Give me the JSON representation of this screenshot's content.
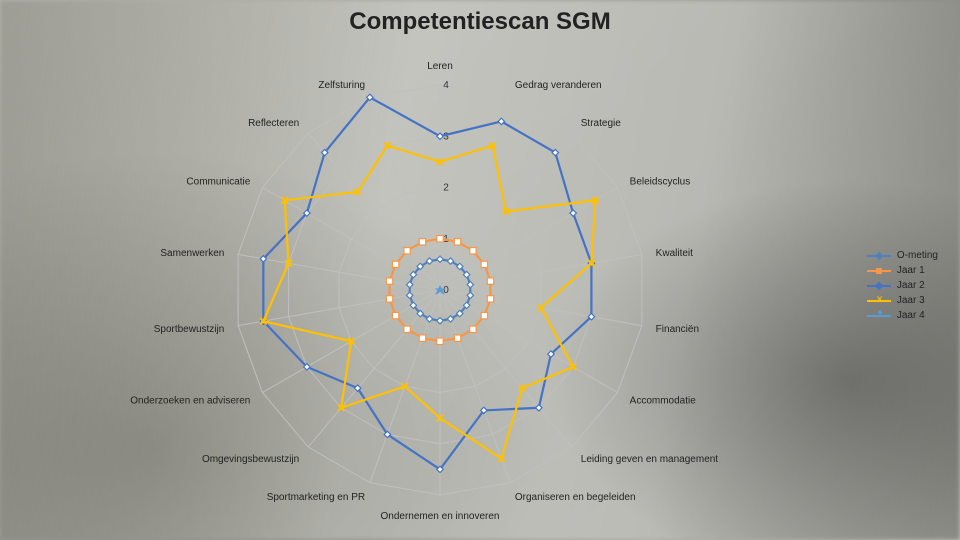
{
  "title": "Competentiescan SGM",
  "subtitle": "Leren",
  "chart": {
    "type": "radar",
    "axes": [
      "Leren",
      "Gedrag veranderen",
      "Strategie",
      "Beleidscyclus",
      "Kwaliteit",
      "Financiën",
      "Accommodatie",
      "Leiding geven en management",
      "Organiseren en begeleiden",
      "Ondernemen en innoveren",
      "Sportmarketing en PR",
      "Omgevingsbewustzijn",
      "Onderzoeken en adviseren",
      "Sportbewustzijn",
      "Samenwerken",
      "Communicatie",
      "Reflecteren",
      "Zelfsturing"
    ],
    "scale_max": 4,
    "ticks": [
      0,
      1,
      2,
      3,
      4
    ],
    "grid_color": "#bfbfbf",
    "background": "#f5f5f3",
    "series": [
      {
        "name": "O-meting",
        "color": "#4f81bd",
        "marker": "diamond",
        "values": [
          0.6,
          0.6,
          0.6,
          0.6,
          0.6,
          0.6,
          0.6,
          0.6,
          0.6,
          0.6,
          0.6,
          0.6,
          0.6,
          0.6,
          0.6,
          0.6,
          0.6,
          0.6
        ]
      },
      {
        "name": "Jaar 1",
        "color": "#f79646",
        "marker": "square",
        "values": [
          1,
          1,
          1,
          1,
          1,
          1,
          1,
          1,
          1,
          1,
          1,
          1,
          1,
          1,
          1,
          1,
          1,
          1
        ]
      },
      {
        "name": "Jaar 2",
        "color": "#4472c4",
        "marker": "diamond",
        "values": [
          3.0,
          3.5,
          3.5,
          3.0,
          3.0,
          3.0,
          2.5,
          3.0,
          2.5,
          3.5,
          3.0,
          2.5,
          3.0,
          3.5,
          3.5,
          3.0,
          3.5,
          4.0
        ]
      },
      {
        "name": "Jaar 3",
        "color": "#ffc000",
        "marker": "x",
        "values": [
          2.5,
          3.0,
          2.0,
          3.5,
          3.0,
          2.0,
          3.0,
          2.5,
          3.5,
          2.5,
          2.0,
          3.0,
          2.0,
          3.5,
          3.0,
          3.5,
          2.5,
          3.0
        ]
      },
      {
        "name": "Jaar 4",
        "color": "#5b9bd5",
        "marker": "star",
        "values": [
          0,
          0,
          0,
          0,
          0,
          0,
          0,
          0,
          0,
          0,
          0,
          0,
          0,
          0,
          0,
          0,
          0,
          0
        ]
      }
    ],
    "title_fontsize": 24,
    "label_fontsize": 10,
    "tick_fontsize": 10
  },
  "legend": {
    "items": [
      "O-meting",
      "Jaar 1",
      "Jaar 2",
      "Jaar 3",
      "Jaar 4"
    ]
  }
}
